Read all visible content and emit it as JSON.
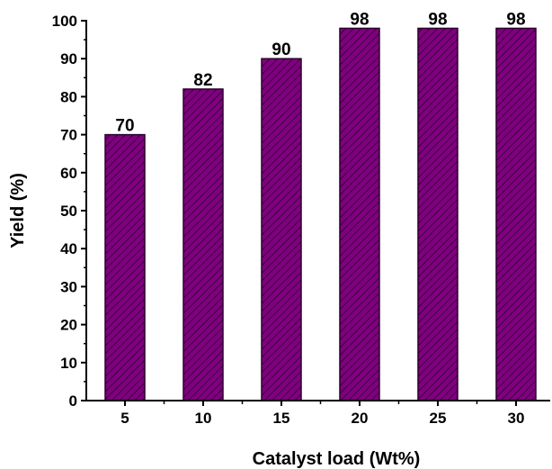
{
  "chart_data": {
    "type": "bar",
    "categories": [
      "5",
      "10",
      "15",
      "20",
      "25",
      "30"
    ],
    "values": [
      70,
      82,
      90,
      98,
      98,
      98
    ],
    "data_labels": [
      "70",
      "82",
      "90",
      "98",
      "98",
      "98"
    ],
    "xlabel": "Catalyst load (Wt%)",
    "ylabel": "Yield (%)",
    "ylim": [
      0,
      100
    ],
    "yticks": [
      0,
      10,
      20,
      30,
      40,
      50,
      60,
      70,
      80,
      90,
      100
    ],
    "grid": false,
    "legend": "none",
    "bar_fill": "#800080",
    "bar_hatch": "#3a003a",
    "bar_edge": "#2a002a"
  }
}
